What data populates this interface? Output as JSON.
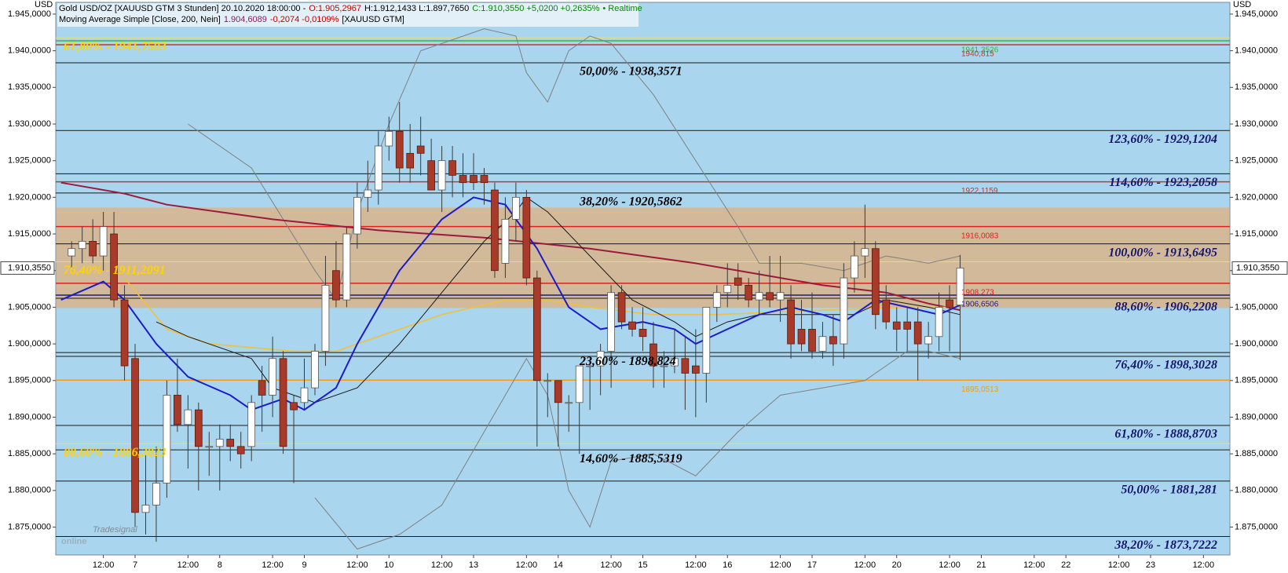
{
  "chart_data": {
    "type": "candlestick",
    "header": [
      [
        {
          "text": "Gold USD/OZ [XAUUSD GTM 3 Stunden] 20.10.2020 18:00:00 -",
          "color": "#000000"
        },
        {
          "text": "O:1.905,2967",
          "color": "#c00000"
        },
        {
          "text": "H:1.912,1433 L:1.897,7650",
          "color": "#000000"
        },
        {
          "text": "C:1.910,3550 +5,0200 +0,2635%",
          "color": "#008a00"
        },
        {
          "text": "• Realtime",
          "color": "#008a00"
        }
      ],
      [
        {
          "text": "Moving Average Simple [Close, 200, Nein]",
          "color": "#000000"
        },
        {
          "text": "1.904,6089",
          "color": "#7b1d5c"
        },
        {
          "text": "-0,2074 -0,0109%",
          "color": "#c00000"
        },
        {
          "text": "[XAUUSD GTM]",
          "color": "#000000"
        }
      ]
    ],
    "y_unit": "USD",
    "logo": [
      "Tradesignal",
      "online"
    ],
    "ylim": [
      1871.2,
      1946.6
    ],
    "yticks": [
      {
        "value": 1875,
        "label": "1.875,0000"
      },
      {
        "value": 1880,
        "label": "1.880,0000"
      },
      {
        "value": 1885,
        "label": "1.885,0000"
      },
      {
        "value": 1890,
        "label": "1.890,0000"
      },
      {
        "value": 1895,
        "label": "1.895,0000"
      },
      {
        "value": 1900,
        "label": "1.900,0000"
      },
      {
        "value": 1905,
        "label": "1.905,0000"
      },
      {
        "value": 1910,
        "label": "1.910,0000"
      },
      {
        "value": 1915,
        "label": "1.915,0000"
      },
      {
        "value": 1920,
        "label": "1.920,0000"
      },
      {
        "value": 1925,
        "label": "1.925,0000"
      },
      {
        "value": 1930,
        "label": "1.930,0000"
      },
      {
        "value": 1935,
        "label": "1.935,0000"
      },
      {
        "value": 1940,
        "label": "1.940,0000"
      },
      {
        "value": 1945,
        "label": "1.945,0000"
      }
    ],
    "last_price": {
      "value": 1910.355,
      "label": "1.910,3550"
    },
    "categories": [
      null,
      null,
      null,
      null,
      "12:00",
      null,
      null,
      "7",
      null,
      null,
      null,
      null,
      "12:00",
      null,
      null,
      "8",
      null,
      null,
      null,
      null,
      "12:00",
      null,
      null,
      "9",
      null,
      null,
      null,
      null,
      "12:00",
      null,
      null,
      "10",
      null,
      null,
      null,
      null,
      "12:00",
      null,
      null,
      "13",
      null,
      null,
      null,
      null,
      "12:00",
      null,
      null,
      "14",
      null,
      null,
      null,
      null,
      "12:00",
      null,
      null,
      "15",
      null,
      null,
      null,
      null,
      "12:00",
      null,
      null,
      "16",
      null,
      null,
      null,
      null,
      "12:00",
      null,
      null,
      "17",
      null,
      null,
      null,
      null,
      "12:00",
      null,
      null,
      "20",
      null,
      null,
      null,
      null,
      "12:00",
      null,
      null,
      "21",
      null,
      null,
      null,
      null,
      "12:00",
      null,
      null,
      "22",
      null,
      null,
      null,
      null,
      "12:00",
      null,
      null,
      "23",
      null,
      null,
      null,
      null,
      "12:00",
      null,
      null
    ],
    "up_color": "#ffffff",
    "down_color": "#a83a2a",
    "open": [
      null,
      1912,
      1913,
      1914,
      1912,
      1915,
      1906,
      1898,
      1877,
      1878,
      1881,
      1893,
      1889,
      1891,
      1886,
      1886,
      1887,
      1886,
      1886,
      1895,
      1893,
      1898,
      1892,
      1892,
      1894,
      1899,
      1910,
      1906,
      1915,
      1920,
      1921,
      1927,
      1929,
      1926,
      1927,
      1925,
      1921,
      1925,
      1923,
      1923,
      1923,
      1921,
      1911,
      1917,
      1920,
      1909,
      1895,
      1895,
      1892,
      1892,
      1897,
      1897,
      1899,
      1907,
      1903,
      1902,
      1900,
      1897,
      1897,
      1898,
      1897,
      1896,
      1905,
      1907,
      1909,
      1908,
      1906,
      1907,
      1906,
      1906,
      1902,
      1902,
      1899,
      1901,
      1900,
      1909,
      1912,
      1913,
      1906,
      1903,
      1903,
      1903,
      1900,
      1901,
      1906,
      1905.2967,
      null,
      null,
      null,
      null,
      null,
      null,
      null,
      null,
      null,
      null,
      null,
      null,
      null,
      null,
      null,
      null,
      null,
      null,
      null,
      null,
      null,
      null,
      null,
      null,
      null
    ],
    "high": [
      null,
      1914,
      1916,
      1917,
      1918,
      1918,
      1908,
      1900,
      1885,
      1886,
      1895,
      1898,
      1893,
      1892,
      1888,
      1889,
      1889,
      1888,
      1893,
      1897,
      1901,
      1899,
      1893,
      1898,
      1900,
      1912,
      1914,
      1916,
      1922,
      1925,
      1929,
      1931,
      1933,
      1930,
      1931,
      1928,
      1927,
      1927,
      1926,
      1926,
      1924,
      1922,
      1920,
      1922,
      1921,
      1910,
      1896,
      1895,
      1893,
      1897,
      1898,
      1900,
      1908,
      1908,
      1905,
      1905,
      1903,
      1899,
      1902,
      1901,
      1902,
      1905,
      1908,
      1911,
      1911,
      1909,
      1910,
      1912,
      1912,
      1908,
      1906,
      1907,
      1903,
      1904,
      1911,
      1914,
      1919,
      1914,
      1908,
      1905,
      1905,
      1905,
      1903,
      1907,
      1908,
      1912.1433,
      null,
      null,
      null,
      null,
      null,
      null,
      null,
      null,
      null,
      null,
      null,
      null,
      null,
      null,
      null,
      null,
      null,
      null,
      null,
      null,
      null,
      null,
      null,
      null,
      null
    ],
    "low": [
      null,
      1910,
      1911,
      1911,
      1910,
      1905,
      1895,
      1875,
      1874,
      1873,
      1879,
      1888,
      1883,
      1880,
      1882,
      1880,
      1884,
      1883,
      1884,
      1888,
      1890,
      1885,
      1881,
      1891,
      1893,
      1897,
      1905,
      1905,
      1913,
      1918,
      1919,
      1925,
      1922,
      1922,
      1923,
      1921,
      1918,
      1920,
      1920,
      1921,
      1919,
      1909,
      1909,
      1914,
      1908,
      1886,
      1890,
      1886,
      1888,
      1885,
      1891,
      1893,
      1894,
      1902,
      1901,
      1899,
      1894,
      1894,
      1896,
      1891,
      1890,
      1892,
      1903,
      1905,
      1906,
      1905,
      1904,
      1905,
      1903,
      1898,
      1899,
      1898,
      1898,
      1897,
      1898,
      1907,
      1909,
      1902,
      1902,
      1899,
      1899,
      1895,
      1898,
      1899,
      1899,
      1897.765,
      null,
      null,
      null,
      null,
      null,
      null,
      null,
      null,
      null,
      null,
      null,
      null,
      null,
      null,
      null,
      null,
      null,
      null,
      null,
      null,
      null,
      null,
      null,
      null,
      null
    ],
    "close": [
      null,
      1913,
      1914,
      1912,
      1916,
      1906,
      1897,
      1877,
      1878,
      1881,
      1893,
      1889,
      1891,
      1886,
      1886,
      1887,
      1886,
      1885,
      1892,
      1893,
      1898,
      1886,
      1891,
      1894,
      1899,
      1908,
      1906,
      1915,
      1920,
      1921,
      1927,
      1929,
      1924,
      1924,
      1926,
      1921,
      1925,
      1923,
      1922,
      1922,
      1922,
      1910,
      1917,
      1920,
      1909,
      1895,
      1895,
      1892,
      1892,
      1897,
      1897,
      1899,
      1907,
      1903,
      1902,
      1901,
      1897,
      1897,
      1898,
      1896,
      1896,
      1905,
      1907,
      1908,
      1908,
      1906,
      1907,
      1906,
      1907,
      1900,
      1900,
      1899,
      1901,
      1900,
      1909,
      1912,
      1913,
      1904,
      1903,
      1902,
      1902,
      1900,
      1901,
      1905,
      1905,
      1910.355,
      null,
      null,
      null,
      null,
      null,
      null,
      null,
      null,
      null,
      null,
      null,
      null,
      null,
      null,
      null,
      null,
      null,
      null,
      null,
      null,
      null,
      null,
      null,
      null,
      null
    ],
    "zone": [
      1904.9,
      1918.6
    ],
    "zone_color": "#d9b48a",
    "indicators": [
      {
        "color": "#808080",
        "width": 1,
        "x": [
          12,
          18,
          24,
          26,
          28,
          31,
          34,
          40,
          43,
          44,
          46,
          48,
          50,
          52,
          56,
          60,
          64,
          66,
          70,
          74,
          78,
          82,
          85
        ],
        "values": [
          1930,
          1924,
          1910,
          1906,
          1918,
          1930,
          1940,
          1943,
          1942,
          1937,
          1933,
          1940,
          1942,
          1941,
          1934,
          1925,
          1916,
          1911,
          1911,
          1910,
          1912,
          1911,
          1912
        ]
      },
      {
        "color": "#808080",
        "width": 1,
        "x": [
          24,
          28,
          32,
          36,
          40,
          44,
          46,
          48,
          50,
          52,
          56,
          60,
          64,
          68,
          72,
          76,
          80,
          82,
          85
        ],
        "values": [
          1879,
          1872,
          1874,
          1878,
          1888,
          1898,
          1893,
          1880,
          1875,
          1884,
          1885,
          1882,
          1888,
          1893,
          1894,
          1895,
          1899,
          1899,
          1898
        ]
      },
      {
        "color": "#9b1b3c",
        "width": 2,
        "x": [
          0,
          6,
          10,
          20,
          30,
          40,
          50,
          60,
          66,
          72,
          78,
          82,
          85
        ],
        "values": [
          1922,
          1920.5,
          1919,
          1917,
          1915.5,
          1914.5,
          1913,
          1911,
          1909.5,
          1908,
          1907,
          1905.5,
          1904.6089
        ]
      },
      {
        "color": "#f0c040",
        "width": 1.6,
        "x": [
          6,
          10,
          14,
          22,
          26,
          30,
          36,
          42,
          46,
          50,
          56,
          62,
          70,
          80,
          85
        ],
        "values": [
          1909,
          1902,
          1900,
          1899,
          1899,
          1901,
          1904,
          1906,
          1906,
          1905,
          1904,
          1904,
          1904.5,
          1905,
          1905
        ]
      },
      {
        "color": "#1a1a1a",
        "width": 1,
        "x": [
          9,
          12,
          18,
          20,
          24,
          28,
          32,
          36,
          40,
          43,
          44,
          46,
          50,
          54,
          58,
          60,
          63,
          66,
          70,
          75,
          78,
          82,
          85
        ],
        "values": [
          1903,
          1901,
          1898,
          1894,
          1892,
          1894,
          1900,
          1907,
          1914,
          1918,
          1920,
          1918,
          1912,
          1906,
          1903,
          1901,
          1903,
          1904,
          1904,
          1904,
          1906,
          1905,
          1904
        ]
      },
      {
        "color": "#1c1cc8",
        "width": 2,
        "x": [
          0,
          4,
          6,
          9,
          12,
          16,
          18,
          21,
          23,
          26,
          28,
          32,
          36,
          39,
          42,
          45,
          48,
          51,
          55,
          58,
          60,
          63,
          66,
          69,
          72,
          74,
          77,
          80,
          83,
          85
        ],
        "values": [
          1906,
          1908.5,
          1906,
          1900,
          1895.5,
          1893,
          1891,
          1892.5,
          1891,
          1894,
          1900,
          1910,
          1917,
          1920,
          1919,
          1913,
          1905,
          1902,
          1903,
          1902,
          1900,
          1902,
          1904,
          1905,
          1904,
          1903,
          1906,
          1905,
          1904,
          1905.3
        ]
      }
    ],
    "fib_right": {
      "line_color": "#1a1a1a",
      "text_color": "#16166e",
      "levels": [
        {
          "value": 1929.1204,
          "label": "123,60% - 1929,1204"
        },
        {
          "value": 1923.2058,
          "label": "114,60% - 1923,2058"
        },
        {
          "value": 1913.6495,
          "label": "100,00% - 1913,6495"
        },
        {
          "value": 1906.2208,
          "label": "88,60% - 1906,2208"
        },
        {
          "value": 1898.3028,
          "label": "76,40% - 1898,3028"
        },
        {
          "value": 1888.8703,
          "label": "61,80% - 1888,8703"
        },
        {
          "value": 1881.281,
          "label": "50,00% - 1881,281"
        },
        {
          "value": 1873.7222,
          "label": "38,20% - 1873,7222"
        }
      ]
    },
    "fib_center": {
      "line_color": "#1a1a1a",
      "text_color": "#000000",
      "levels": [
        {
          "value": 1938.3571,
          "label": "50,00% - 1938,3571"
        },
        {
          "value": 1920.5862,
          "label": "38,20% - 1920,5862"
        },
        {
          "value": 1898.824,
          "label": "23,60% - 1898,824"
        },
        {
          "value": 1885.5319,
          "label": "14,60% - 1885,5319"
        }
      ]
    },
    "fib_left": {
      "line_color": "#e6e070",
      "text_color": "#ffd400",
      "levels": [
        {
          "value": 1941.7503,
          "label": "61,80% - 1941,7503"
        },
        {
          "value": 1911.2091,
          "label": "76,40% - 1911,2091"
        },
        {
          "value": 1886.3823,
          "label": "88,60% - 1886,3823"
        }
      ]
    },
    "price_lines": {
      "levels": [
        {
          "value": 1941.3526,
          "label": "1941,3526",
          "color": "#3cb043"
        },
        {
          "value": 1940.815,
          "label": "1940,815",
          "color": "#c0392b"
        },
        {
          "value": 1922.1159,
          "label": "1922,1159",
          "color": "#c0392b"
        },
        {
          "value": 1916.0083,
          "label": "1916,0083",
          "color": "#e02020"
        },
        {
          "value": 1908.273,
          "label": "1908,273",
          "color": "#e02020"
        },
        {
          "value": 1906.6506,
          "label": "1906,6506",
          "color": "#1c1c80"
        },
        {
          "value": 1895.0513,
          "label": "1895,0513",
          "color": "#f39c12"
        }
      ]
    }
  }
}
